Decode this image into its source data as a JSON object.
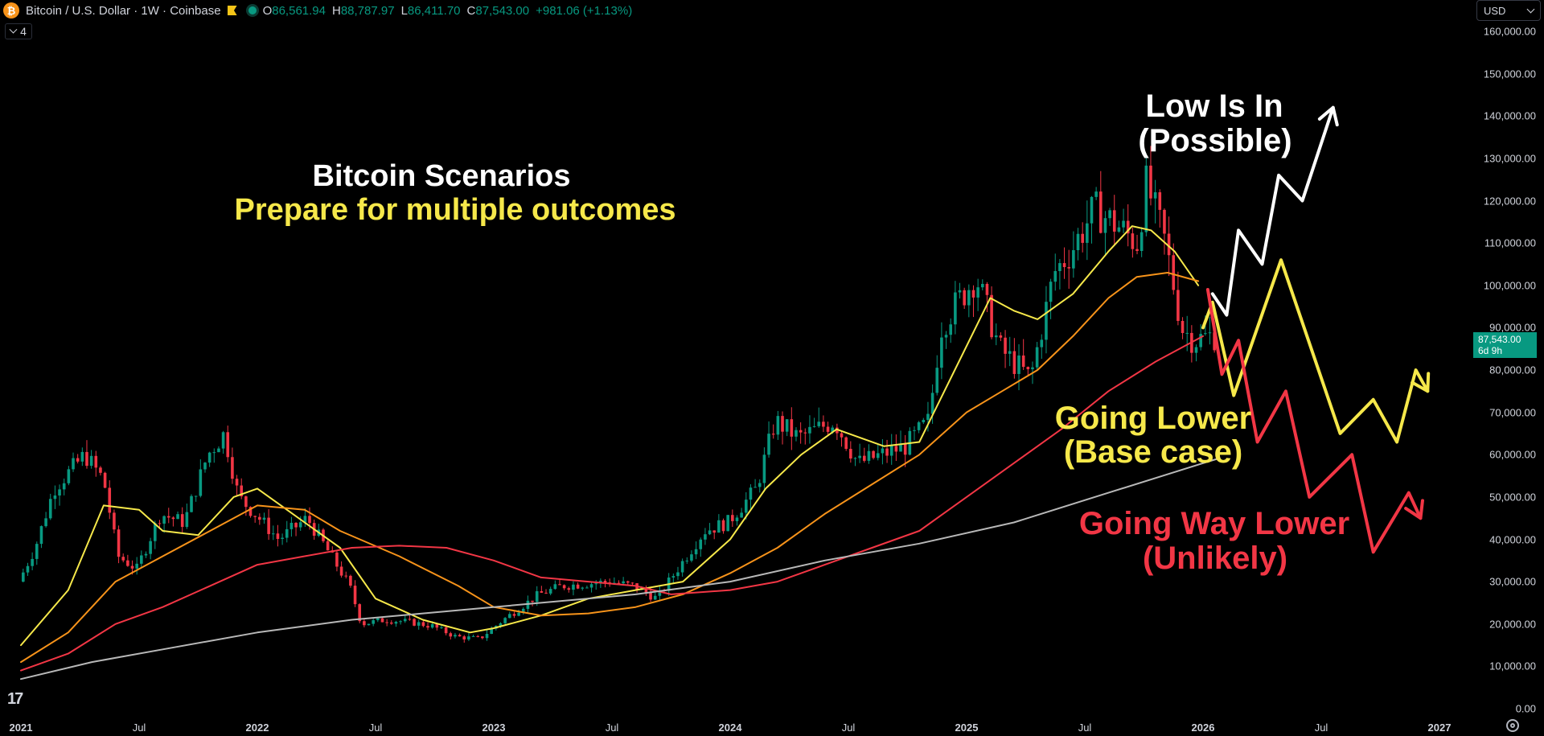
{
  "header": {
    "symbol": "Bitcoin / U.S. Dollar · 1W · Coinbase",
    "coin_glyph": "₿",
    "open_label": "O",
    "open": "86,561.94",
    "high_label": "H",
    "high": "88,787.97",
    "low_label": "L",
    "low": "86,411.70",
    "close_label": "C",
    "close": "87,543.00",
    "change": "+981.06 (+1.13%)",
    "indicator_count": "4",
    "currency": "USD"
  },
  "price_tag": {
    "price": "87,543.00",
    "countdown": "6d 9h"
  },
  "logo_text": "17",
  "colors": {
    "up": "#089981",
    "down": "#f23645",
    "ma_yellow": "#f6e84a",
    "ma_orange": "#f7931a",
    "ma_red": "#f23645",
    "ma_grey": "#b8b8b8",
    "arrow_white": "#ffffff",
    "arrow_yellow": "#f6e84a",
    "arrow_red": "#f23645"
  },
  "annotations": {
    "title": "Bitcoin Scenarios",
    "subtitle": "Prepare for multiple outcomes",
    "white_line1": "Low Is In",
    "white_line2": "(Possible)",
    "yellow_line1": "Going Lower",
    "yellow_line2": "(Base case)",
    "red_line1": "Going Way Lower",
    "red_line2": "(Unlikely)"
  },
  "chart_data": {
    "type": "candlestick",
    "title": "Bitcoin Scenarios",
    "subtitle": "Prepare for multiple outcomes",
    "ylim": [
      0,
      160000
    ],
    "y_ticks": [
      "0.00",
      "10,000.00",
      "20,000.00",
      "30,000.00",
      "40,000.00",
      "50,000.00",
      "60,000.00",
      "70,000.00",
      "80,000.00",
      "90,000.00",
      "100,000.00",
      "110,000.00",
      "120,000.00",
      "130,000.00",
      "140,000.00",
      "150,000.00",
      "160,000.00"
    ],
    "x_ticks": [
      {
        "label": "2021",
        "year": 2021.0,
        "bold": true
      },
      {
        "label": "Jul",
        "year": 2021.5,
        "bold": false
      },
      {
        "label": "2022",
        "year": 2022.0,
        "bold": true
      },
      {
        "label": "Jul",
        "year": 2022.5,
        "bold": false
      },
      {
        "label": "2023",
        "year": 2023.0,
        "bold": true
      },
      {
        "label": "Jul",
        "year": 2023.5,
        "bold": false
      },
      {
        "label": "2024",
        "year": 2024.0,
        "bold": true
      },
      {
        "label": "Jul",
        "year": 2024.5,
        "bold": false
      },
      {
        "label": "2025",
        "year": 2025.0,
        "bold": true
      },
      {
        "label": "Jul",
        "year": 2025.5,
        "bold": false
      },
      {
        "label": "2026",
        "year": 2026.0,
        "bold": true
      },
      {
        "label": "Jul",
        "year": 2026.5,
        "bold": false
      },
      {
        "label": "2027",
        "year": 2027.0,
        "bold": true
      }
    ],
    "price_path": [
      [
        2021.0,
        30000
      ],
      [
        2021.07,
        38000
      ],
      [
        2021.15,
        52000
      ],
      [
        2021.28,
        60000
      ],
      [
        2021.36,
        54000
      ],
      [
        2021.42,
        36000
      ],
      [
        2021.5,
        33000
      ],
      [
        2021.6,
        46000
      ],
      [
        2021.7,
        44000
      ],
      [
        2021.8,
        60000
      ],
      [
        2021.87,
        65000
      ],
      [
        2021.93,
        50000
      ],
      [
        2022.0,
        46000
      ],
      [
        2022.1,
        40000
      ],
      [
        2022.22,
        45000
      ],
      [
        2022.3,
        38000
      ],
      [
        2022.4,
        29000
      ],
      [
        2022.45,
        20000
      ],
      [
        2022.55,
        21000
      ],
      [
        2022.65,
        20500
      ],
      [
        2022.75,
        19500
      ],
      [
        2022.85,
        17000
      ],
      [
        2022.95,
        16500
      ],
      [
        2023.05,
        21000
      ],
      [
        2023.2,
        27000
      ],
      [
        2023.3,
        29000
      ],
      [
        2023.5,
        30000
      ],
      [
        2023.6,
        29000
      ],
      [
        2023.7,
        26000
      ],
      [
        2023.8,
        34000
      ],
      [
        2023.9,
        42000
      ],
      [
        2024.0,
        44000
      ],
      [
        2024.12,
        52000
      ],
      [
        2024.2,
        68000
      ],
      [
        2024.3,
        64000
      ],
      [
        2024.45,
        68000
      ],
      [
        2024.55,
        58000
      ],
      [
        2024.65,
        60000
      ],
      [
        2024.75,
        62000
      ],
      [
        2024.85,
        68000
      ],
      [
        2024.9,
        90000
      ],
      [
        2024.97,
        96000
      ],
      [
        2025.05,
        102000
      ],
      [
        2025.15,
        85000
      ],
      [
        2025.28,
        78000
      ],
      [
        2025.38,
        103000
      ],
      [
        2025.45,
        108000
      ],
      [
        2025.55,
        118000
      ],
      [
        2025.65,
        114000
      ],
      [
        2025.73,
        110000
      ],
      [
        2025.77,
        124000
      ],
      [
        2025.85,
        110000
      ],
      [
        2025.92,
        90000
      ],
      [
        2025.97,
        87000
      ],
      [
        2026.04,
        88000
      ]
    ],
    "series": [
      {
        "name": "",
        "color": "#f6e84a",
        "points": [
          [
            2021.0,
            15000
          ],
          [
            2021.2,
            28000
          ],
          [
            2021.35,
            48000
          ],
          [
            2021.5,
            47000
          ],
          [
            2021.6,
            42000
          ],
          [
            2021.75,
            41000
          ],
          [
            2021.9,
            50000
          ],
          [
            2022.0,
            52000
          ],
          [
            2022.1,
            48000
          ],
          [
            2022.2,
            44000
          ],
          [
            2022.35,
            38000
          ],
          [
            2022.5,
            26000
          ],
          [
            2022.7,
            21000
          ],
          [
            2022.9,
            18000
          ],
          [
            2023.0,
            19000
          ],
          [
            2023.2,
            22000
          ],
          [
            2023.4,
            26000
          ],
          [
            2023.6,
            28000
          ],
          [
            2023.8,
            30000
          ],
          [
            2024.0,
            40000
          ],
          [
            2024.15,
            52000
          ],
          [
            2024.3,
            60000
          ],
          [
            2024.45,
            66000
          ],
          [
            2024.55,
            64000
          ],
          [
            2024.65,
            62000
          ],
          [
            2024.8,
            63000
          ],
          [
            2024.95,
            80000
          ],
          [
            2025.1,
            97000
          ],
          [
            2025.2,
            94000
          ],
          [
            2025.3,
            92000
          ],
          [
            2025.45,
            98000
          ],
          [
            2025.6,
            108000
          ],
          [
            2025.7,
            114000
          ],
          [
            2025.78,
            113000
          ],
          [
            2025.88,
            108000
          ],
          [
            2025.98,
            100000
          ]
        ]
      },
      {
        "name": "",
        "color": "#f7931a",
        "points": [
          [
            2021.0,
            11000
          ],
          [
            2021.2,
            18000
          ],
          [
            2021.4,
            30000
          ],
          [
            2021.6,
            36000
          ],
          [
            2021.8,
            42000
          ],
          [
            2022.0,
            48000
          ],
          [
            2022.2,
            47000
          ],
          [
            2022.35,
            42000
          ],
          [
            2022.6,
            36000
          ],
          [
            2022.85,
            29000
          ],
          [
            2023.0,
            24000
          ],
          [
            2023.2,
            22000
          ],
          [
            2023.4,
            22500
          ],
          [
            2023.6,
            24000
          ],
          [
            2023.8,
            27000
          ],
          [
            2024.0,
            32000
          ],
          [
            2024.2,
            38000
          ],
          [
            2024.4,
            46000
          ],
          [
            2024.6,
            53000
          ],
          [
            2024.8,
            60000
          ],
          [
            2025.0,
            70000
          ],
          [
            2025.15,
            75000
          ],
          [
            2025.3,
            80000
          ],
          [
            2025.45,
            88000
          ],
          [
            2025.6,
            97000
          ],
          [
            2025.72,
            102000
          ],
          [
            2025.85,
            103000
          ],
          [
            2025.98,
            101000
          ]
        ]
      },
      {
        "name": "",
        "color": "#f23645",
        "points": [
          [
            2021.0,
            9000
          ],
          [
            2021.2,
            13000
          ],
          [
            2021.4,
            20000
          ],
          [
            2021.6,
            24000
          ],
          [
            2021.8,
            29000
          ],
          [
            2022.0,
            34000
          ],
          [
            2022.2,
            36000
          ],
          [
            2022.4,
            38000
          ],
          [
            2022.6,
            38500
          ],
          [
            2022.8,
            38000
          ],
          [
            2023.0,
            35000
          ],
          [
            2023.2,
            31000
          ],
          [
            2023.4,
            30000
          ],
          [
            2023.6,
            29000
          ],
          [
            2023.75,
            27000
          ],
          [
            2024.0,
            28000
          ],
          [
            2024.2,
            30000
          ],
          [
            2024.4,
            34000
          ],
          [
            2024.6,
            38000
          ],
          [
            2024.8,
            42000
          ],
          [
            2025.0,
            50000
          ],
          [
            2025.2,
            58000
          ],
          [
            2025.4,
            66000
          ],
          [
            2025.6,
            75000
          ],
          [
            2025.8,
            82000
          ],
          [
            2026.0,
            88000
          ]
        ]
      },
      {
        "name": "",
        "color": "#b8b8b8",
        "points": [
          [
            2021.0,
            7000
          ],
          [
            2021.3,
            11000
          ],
          [
            2021.6,
            14000
          ],
          [
            2022.0,
            18000
          ],
          [
            2022.4,
            21000
          ],
          [
            2022.8,
            23000
          ],
          [
            2023.2,
            25000
          ],
          [
            2023.6,
            27000
          ],
          [
            2024.0,
            30000
          ],
          [
            2024.4,
            35000
          ],
          [
            2024.8,
            39000
          ],
          [
            2025.2,
            44000
          ],
          [
            2025.6,
            51000
          ],
          [
            2026.0,
            58000
          ],
          [
            2026.06,
            59000
          ]
        ]
      }
    ],
    "scenarios": [
      {
        "name": "Low Is In (Possible)",
        "color": "#ffffff",
        "points": [
          [
            2026.04,
            98000
          ],
          [
            2026.1,
            93000
          ],
          [
            2026.15,
            113000
          ],
          [
            2026.25,
            105000
          ],
          [
            2026.32,
            126000
          ],
          [
            2026.42,
            120000
          ],
          [
            2026.55,
            142000
          ]
        ]
      },
      {
        "name": "Going Lower (Base case)",
        "color": "#f6e84a",
        "points": [
          [
            2026.0,
            90000
          ],
          [
            2026.04,
            96000
          ],
          [
            2026.13,
            74000
          ],
          [
            2026.33,
            106000
          ],
          [
            2026.58,
            65000
          ],
          [
            2026.72,
            73000
          ],
          [
            2026.82,
            63000
          ],
          [
            2026.9,
            80000
          ],
          [
            2026.95,
            75000
          ]
        ]
      },
      {
        "name": "Going Way Lower (Unlikely)",
        "color": "#f23645",
        "points": [
          [
            2026.02,
            99000
          ],
          [
            2026.08,
            79000
          ],
          [
            2026.15,
            87000
          ],
          [
            2026.23,
            63000
          ],
          [
            2026.35,
            75000
          ],
          [
            2026.45,
            50000
          ],
          [
            2026.63,
            60000
          ],
          [
            2026.72,
            37000
          ],
          [
            2026.87,
            51000
          ],
          [
            2026.92,
            45000
          ]
        ]
      }
    ]
  }
}
